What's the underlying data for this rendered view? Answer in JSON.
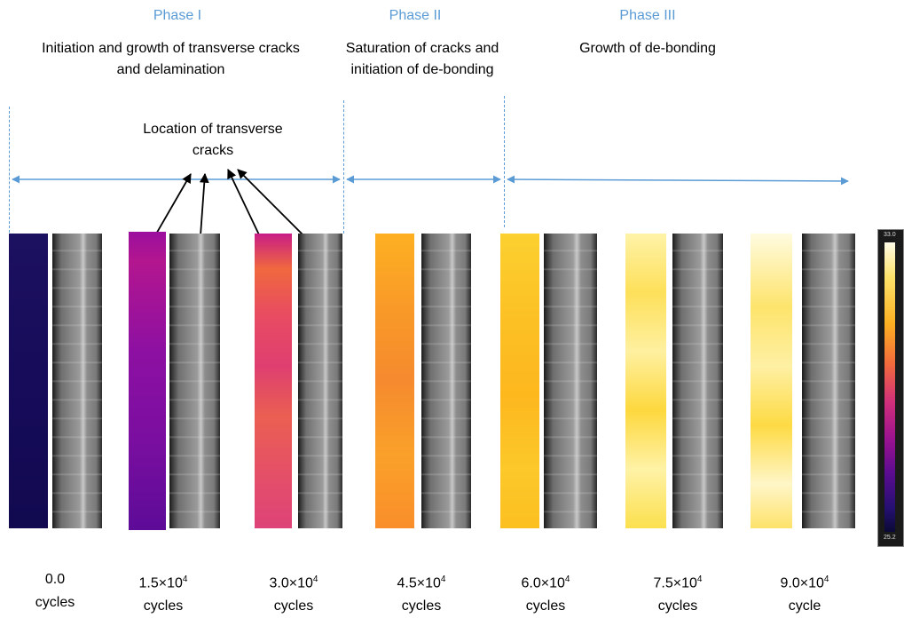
{
  "phases": [
    {
      "name": "Phase I",
      "description_line1": "Initiation and growth of transverse cracks",
      "description_line2": "and delamination"
    },
    {
      "name": "Phase II",
      "description_line1": "Saturation of cracks and",
      "description_line2": "initiation of de-bonding"
    },
    {
      "name": "Phase III",
      "description_line1": "Growth of de-bonding",
      "description_line2": ""
    }
  ],
  "annotation": {
    "line1": "Location of transverse",
    "line2": "cracks"
  },
  "samples": [
    {
      "count": "0.0",
      "unit": "cycles",
      "thermal_color_top": "#1a0f5e",
      "thermal_color_bottom": "#140a55"
    },
    {
      "count_base": "1.5×10",
      "count_exp": "4",
      "unit": "cycles",
      "thermal_color_top": "#9a0fa0",
      "thermal_color_bottom": "#6f0c9a"
    },
    {
      "count_base": "3.0×10",
      "count_exp": "4",
      "unit": "cycles",
      "thermal_color_top": "#d83a6a",
      "thermal_color_bottom": "#e4557c"
    },
    {
      "count_base": "4.5×10",
      "count_exp": "4",
      "unit": "cycles",
      "thermal_color_top": "#fca61f",
      "thermal_color_bottom": "#f98e2a"
    },
    {
      "count_base": "6.0×10",
      "count_exp": "4",
      "unit": "cycles",
      "thermal_color_top": "#fcc524",
      "thermal_color_bottom": "#fcbf20"
    },
    {
      "count_base": "7.5×10",
      "count_exp": "4",
      "unit": "cycles",
      "thermal_color_top": "#fde56a",
      "thermal_color_bottom": "#fce04e"
    },
    {
      "count_base": "9.0×10",
      "count_exp": "4",
      "unit": "cycle",
      "thermal_color_top": "#fef4b0",
      "thermal_color_bottom": "#fde26a"
    }
  ],
  "colorbar": {
    "max": "33.0",
    "min": "25.2"
  },
  "colors": {
    "phase_blue": "#5b9bd5",
    "arrow_black": "#000000"
  }
}
